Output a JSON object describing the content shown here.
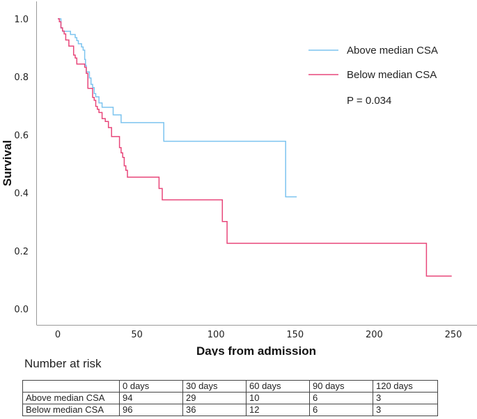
{
  "chart_data": {
    "type": "line",
    "subtype": "kaplan-meier",
    "title": "",
    "xlabel": "Days from admission",
    "ylabel": "Survival",
    "xlim": [
      -12,
      262
    ],
    "ylim": [
      -0.06,
      1.05
    ],
    "xticks": [
      0,
      50,
      100,
      150,
      200,
      250
    ],
    "xtick_labels": [
      "0",
      "50",
      "100",
      "150",
      "200",
      "250"
    ],
    "yticks": [
      0.0,
      0.2,
      0.4,
      0.6,
      0.8,
      1.0
    ],
    "ytick_labels": [
      "0.0",
      "0.2",
      "0.4",
      "0.6",
      "0.8",
      "1.0"
    ],
    "grid": false,
    "legend_position": "top-right",
    "annotation": "P = 0.034",
    "series": [
      {
        "name": "Above median CSA",
        "color": "#7cc4ef",
        "steps": [
          [
            0,
            1.0
          ],
          [
            2,
            0.968
          ],
          [
            3,
            0.957
          ],
          [
            8,
            0.946
          ],
          [
            11,
            0.935
          ],
          [
            12,
            0.925
          ],
          [
            13,
            0.914
          ],
          [
            15,
            0.903
          ],
          [
            16,
            0.892
          ],
          [
            17,
            0.86
          ],
          [
            17.5,
            0.839
          ],
          [
            18,
            0.817
          ],
          [
            20,
            0.796
          ],
          [
            21,
            0.774
          ],
          [
            22,
            0.763
          ],
          [
            23,
            0.742
          ],
          [
            24,
            0.731
          ],
          [
            26,
            0.71
          ],
          [
            28,
            0.695
          ],
          [
            35,
            0.669
          ],
          [
            40,
            0.642
          ],
          [
            67,
            0.578
          ],
          [
            144,
            0.386
          ],
          [
            151,
            0.386
          ]
        ]
      },
      {
        "name": "Below median CSA",
        "color": "#e8467a",
        "steps": [
          [
            0,
            1.0
          ],
          [
            1,
            0.99
          ],
          [
            2,
            0.969
          ],
          [
            3,
            0.958
          ],
          [
            4,
            0.948
          ],
          [
            5,
            0.927
          ],
          [
            7,
            0.906
          ],
          [
            10,
            0.875
          ],
          [
            11,
            0.865
          ],
          [
            12,
            0.844
          ],
          [
            17,
            0.833
          ],
          [
            18,
            0.812
          ],
          [
            19,
            0.76
          ],
          [
            22,
            0.729
          ],
          [
            23,
            0.719
          ],
          [
            24,
            0.698
          ],
          [
            25,
            0.688
          ],
          [
            26,
            0.677
          ],
          [
            28,
            0.656
          ],
          [
            30,
            0.646
          ],
          [
            32,
            0.625
          ],
          [
            34,
            0.594
          ],
          [
            39,
            0.556
          ],
          [
            40,
            0.538
          ],
          [
            41,
            0.522
          ],
          [
            42,
            0.493
          ],
          [
            43,
            0.478
          ],
          [
            44,
            0.454
          ],
          [
            64,
            0.415
          ],
          [
            66,
            0.376
          ],
          [
            104,
            0.301
          ],
          [
            107,
            0.226
          ],
          [
            233,
            0.113
          ],
          [
            249,
            0.113
          ]
        ]
      }
    ]
  },
  "risk_table": {
    "title": "Number at risk",
    "headers": [
      "",
      "0 days",
      "30 days",
      "60 days",
      "90 days",
      "120 days"
    ],
    "rows": [
      {
        "label": "Above median CSA",
        "values": [
          "94",
          "29",
          "10",
          "6",
          "3"
        ]
      },
      {
        "label": "Below median CSA",
        "values": [
          "96",
          "36",
          "12",
          "6",
          "3"
        ]
      }
    ]
  }
}
